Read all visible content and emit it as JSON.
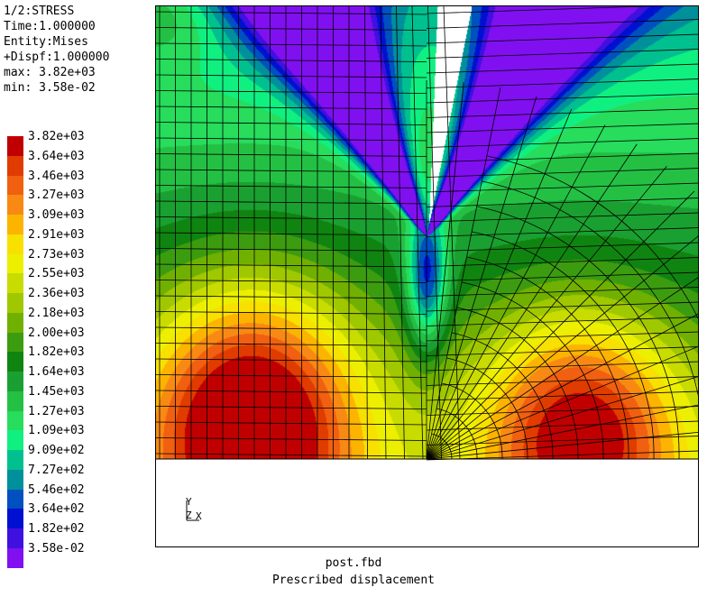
{
  "header": {
    "lines": [
      "1/2:STRESS",
      "Time:1.000000",
      "Entity:Mises",
      "+Dispf:1.000000",
      "max: 3.82e+03",
      "min: 3.58e-02"
    ]
  },
  "legend": {
    "entries": [
      {
        "label": "3.82e+03",
        "color": "#c00000"
      },
      {
        "label": "3.64e+03",
        "color": "#e03c00"
      },
      {
        "label": "3.46e+03",
        "color": "#f06010"
      },
      {
        "label": "3.27e+03",
        "color": "#f88a14"
      },
      {
        "label": "3.09e+03",
        "color": "#fcb400"
      },
      {
        "label": "2.91e+03",
        "color": "#f8e000"
      },
      {
        "label": "2.73e+03",
        "color": "#ecf000"
      },
      {
        "label": "2.55e+03",
        "color": "#c8dc00"
      },
      {
        "label": "2.36e+03",
        "color": "#a0c800"
      },
      {
        "label": "2.18e+03",
        "color": "#70b000"
      },
      {
        "label": "2.00e+03",
        "color": "#3c9c10"
      },
      {
        "label": "1.82e+03",
        "color": "#108410"
      },
      {
        "label": "1.64e+03",
        "color": "#1aa030"
      },
      {
        "label": "1.45e+03",
        "color": "#24c044"
      },
      {
        "label": "1.27e+03",
        "color": "#28dc5c"
      },
      {
        "label": "1.09e+03",
        "color": "#10f080"
      },
      {
        "label": "9.09e+02",
        "color": "#00c090"
      },
      {
        "label": "7.27e+02",
        "color": "#00909c"
      },
      {
        "label": "5.46e+02",
        "color": "#0050c0"
      },
      {
        "label": "3.64e+02",
        "color": "#0010d0"
      },
      {
        "label": "1.82e+02",
        "color": "#4010e0"
      },
      {
        "label": "3.58e-02",
        "color": "#8010f0"
      }
    ]
  },
  "axes": {
    "y": "Y",
    "z": "Z",
    "x": "X"
  },
  "footer": {
    "file": "post.fbd",
    "caption": "Prescribed displacement"
  }
}
